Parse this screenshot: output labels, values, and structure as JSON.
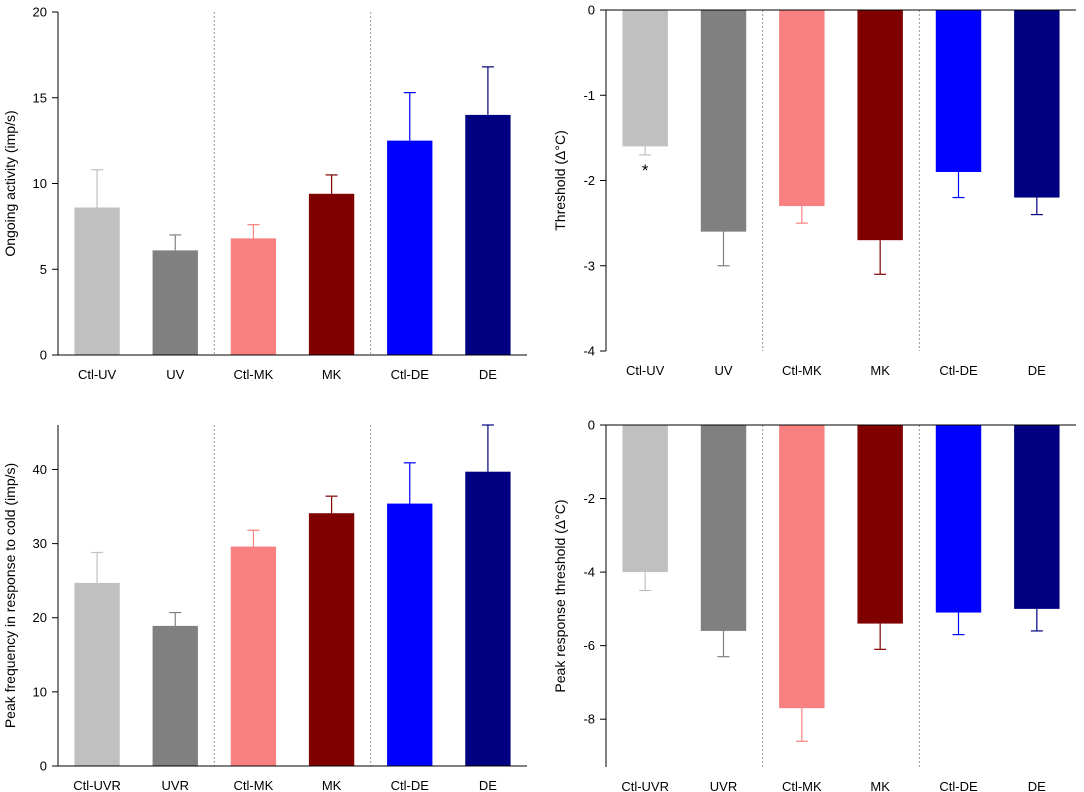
{
  "chart_data": [
    {
      "type": "bar",
      "ylabel": "Ongoing activity (imp/s)",
      "ylim": [
        0,
        20
      ],
      "ticks": [
        0,
        5,
        10,
        15,
        20
      ],
      "categories": [
        "Ctl-UV",
        "UV",
        "Ctl-MK",
        "MK",
        "Ctl-DE",
        "DE"
      ],
      "values": [
        8.6,
        6.1,
        6.8,
        9.4,
        12.5,
        14.0
      ],
      "errors": [
        2.2,
        0.9,
        0.8,
        1.1,
        2.8,
        2.8
      ],
      "colors": [
        "#c0c0c0",
        "#808080",
        "#f88080",
        "#800000",
        "#0000ff",
        "#000080"
      ],
      "group_separators_after": [
        1,
        3
      ],
      "annotations": []
    },
    {
      "type": "bar",
      "ylabel": "Threshold (Δ°C)",
      "ylim": [
        -4,
        0
      ],
      "ticks": [
        0,
        -1,
        -2,
        -3,
        -4
      ],
      "categories": [
        "Ctl-UV",
        "UV",
        "Ctl-MK",
        "MK",
        "Ctl-DE",
        "DE"
      ],
      "values": [
        -1.6,
        -2.6,
        -2.3,
        -2.7,
        -1.9,
        -2.2
      ],
      "errors": [
        0.1,
        0.4,
        0.2,
        0.4,
        0.3,
        0.2
      ],
      "colors": [
        "#c0c0c0",
        "#808080",
        "#f88080",
        "#800000",
        "#0000ff",
        "#000080"
      ],
      "group_separators_after": [
        1,
        3
      ],
      "annotations": [
        {
          "category": "Ctl-UV",
          "text": "*"
        }
      ]
    },
    {
      "type": "bar",
      "ylabel": "Peak frequency in response to cold (imp/s)",
      "ylim": [
        0,
        46
      ],
      "ticks": [
        0,
        10,
        20,
        30,
        40
      ],
      "categories": [
        "Ctl-UVR",
        "UVR",
        "Ctl-MK",
        "MK",
        "Ctl-DE",
        "DE"
      ],
      "values": [
        24.7,
        18.9,
        29.6,
        34.1,
        35.4,
        39.7
      ],
      "errors": [
        4.1,
        1.8,
        2.2,
        2.3,
        5.5,
        6.3
      ],
      "colors": [
        "#c0c0c0",
        "#808080",
        "#f88080",
        "#800000",
        "#0000ff",
        "#000080"
      ],
      "group_separators_after": [
        1,
        3
      ],
      "annotations": []
    },
    {
      "type": "bar",
      "ylabel": "Peak response threshold (Δ°C)",
      "ylim": [
        -9.3,
        0
      ],
      "ticks": [
        0,
        -2,
        -4,
        -6,
        -8
      ],
      "categories": [
        "Ctl-UVR",
        "UVR",
        "Ctl-MK",
        "MK",
        "Ctl-DE",
        "DE"
      ],
      "values": [
        -4.0,
        -5.6,
        -7.7,
        -5.4,
        -5.1,
        -5.0
      ],
      "errors": [
        0.5,
        0.7,
        0.9,
        0.7,
        0.6,
        0.6
      ],
      "colors": [
        "#c0c0c0",
        "#808080",
        "#f88080",
        "#800000",
        "#0000ff",
        "#000080"
      ],
      "group_separators_after": [
        1,
        3
      ],
      "annotations": []
    }
  ]
}
